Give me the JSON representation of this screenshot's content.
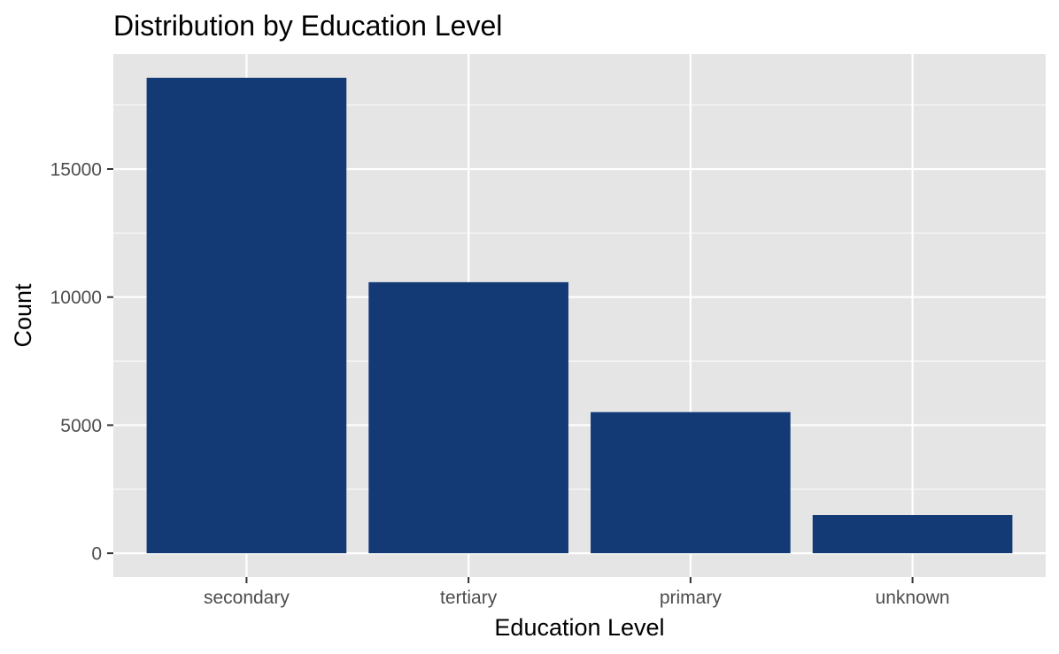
{
  "chart_data": {
    "type": "bar",
    "title": "Distribution by Education Level",
    "xlabel": "Education Level",
    "ylabel": "Count",
    "categories": [
      "secondary",
      "tertiary",
      "primary",
      "unknown"
    ],
    "values": [
      18563,
      10582,
      5509,
      1490
    ],
    "ylim": [
      0,
      18563
    ],
    "yticks": [
      0,
      5000,
      10000,
      15000
    ],
    "ytick_labels": [
      "0",
      "5000",
      "10000",
      "15000"
    ],
    "grid": true,
    "colors": {
      "bar": "#133a75",
      "panel": "#e5e5e5",
      "grid_major": "#ffffff",
      "tick": "#333333"
    }
  }
}
